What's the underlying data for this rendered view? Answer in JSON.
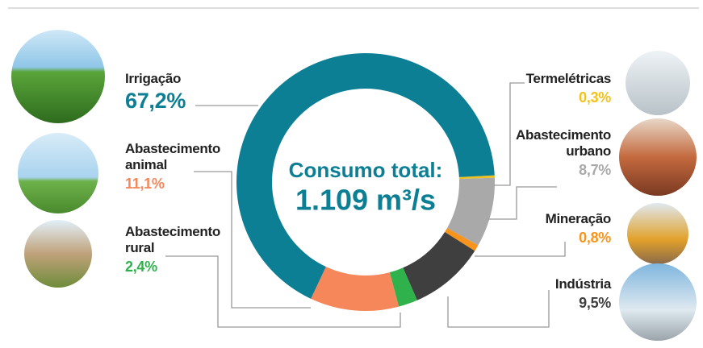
{
  "chart_data": {
    "type": "donut",
    "center_label": "Consumo total:",
    "center_value": "1.109 m³/s",
    "categories": [
      "Termelétricas",
      "Abastecimento urbano",
      "Mineração",
      "Indústria",
      "Abastecimento rural",
      "Abastecimento animal",
      "Irrigação"
    ],
    "values": [
      0.3,
      8.7,
      0.8,
      9.5,
      2.4,
      11.1,
      67.2
    ],
    "value_labels": [
      "0,3%",
      "8,7%",
      "0,8%",
      "9,5%",
      "2,4%",
      "11,1%",
      "67,2%"
    ],
    "colors": [
      "#f2c21b",
      "#a9a9a9",
      "#f7941d",
      "#3f3f3f",
      "#2fb24c",
      "#f5875a",
      "#0d7f95"
    ]
  }
}
